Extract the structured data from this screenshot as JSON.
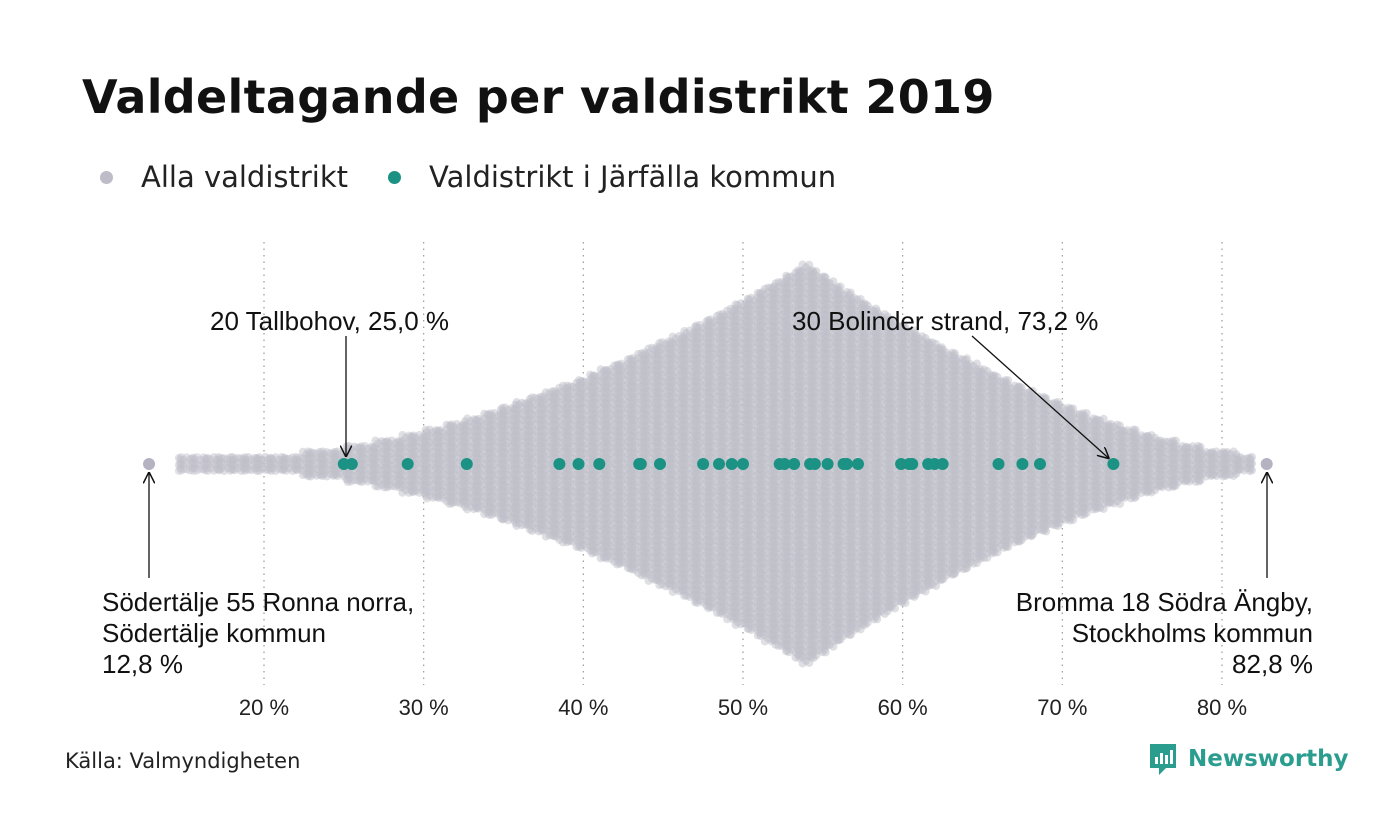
{
  "title": "Valdeltagande per valdistrikt 2019",
  "legend": [
    {
      "label": "Alla valdistrikt",
      "color": "#c0bfca"
    },
    {
      "label": "Valdistrikt i Järfälla kommun",
      "color": "#1b9283"
    }
  ],
  "source": "Källa: Valmyndigheten",
  "brand": "Newsworthy",
  "chart_data": {
    "type": "scatter",
    "subtype": "beeswarm",
    "xlim": [
      12,
      84
    ],
    "x_ticks": [
      20,
      30,
      40,
      50,
      60,
      70,
      80
    ],
    "x_tick_labels": [
      "20 %",
      "30 %",
      "40 %",
      "50 %",
      "60 %",
      "70 %",
      "80 %"
    ],
    "grid": "vertical dotted",
    "legend_position": "top-left",
    "series": [
      {
        "name": "Alla valdistrikt",
        "color": "#c0bfca",
        "distribution": "density peaking near 54 %, range 12.8 %–82.8 %",
        "values": [
          12.8,
          82.8
        ]
      },
      {
        "name": "Valdistrikt i Järfälla kommun",
        "color": "#1b9283",
        "values": [
          25.0,
          25.5,
          29.0,
          32.7,
          38.5,
          39.7,
          41.0,
          43.5,
          43.6,
          44.8,
          47.5,
          48.5,
          49.3,
          50.0,
          52.3,
          52.6,
          53.2,
          54.2,
          54.5,
          55.3,
          56.3,
          56.5,
          57.2,
          59.9,
          60.4,
          60.6,
          61.6,
          62.0,
          62.5,
          66.0,
          67.5,
          68.6,
          73.2
        ]
      }
    ],
    "annotations": [
      {
        "lines": [
          "20 Tallbohov, 25,0 %"
        ],
        "value": 25.0
      },
      {
        "lines": [
          "30 Bolinder strand, 73,2 %"
        ],
        "value": 73.2
      },
      {
        "lines": [
          "Södertälje 55 Ronna norra,",
          "Södertälje kommun",
          "12,8 %"
        ],
        "value": 12.8
      },
      {
        "lines": [
          "Bromma 18 Södra Ängby,",
          "Stockholms kommun",
          "82,8 %"
        ],
        "value": 82.8
      }
    ]
  }
}
